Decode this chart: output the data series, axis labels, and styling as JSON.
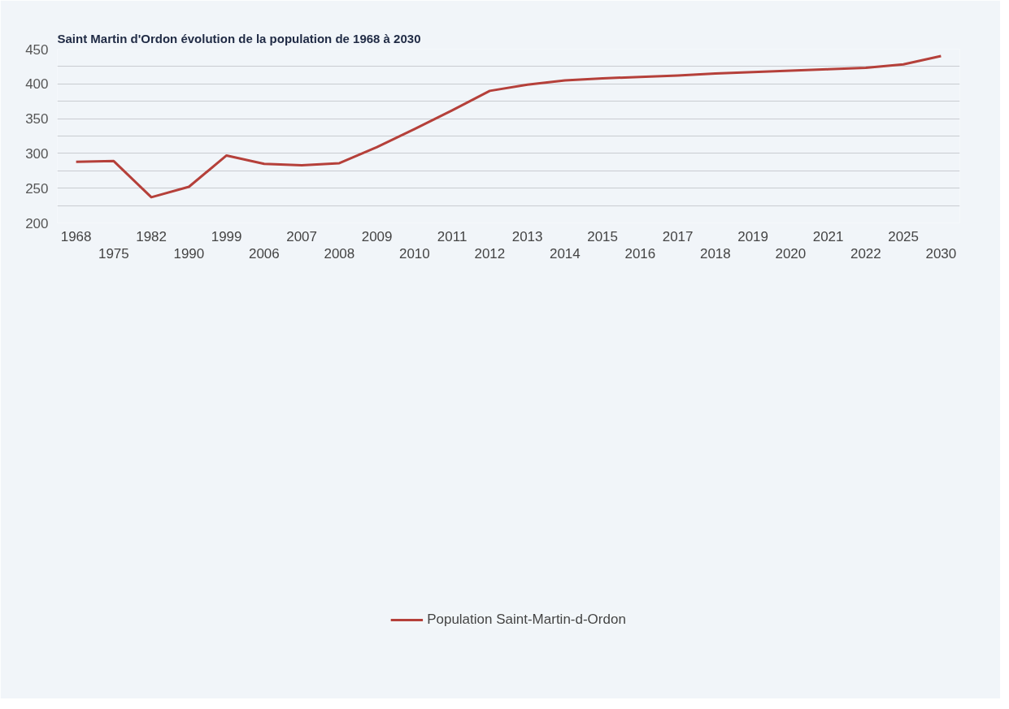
{
  "chart_data": {
    "type": "line",
    "title": "Saint Martin d'Ordon évolution de la population de 1968 à 2030",
    "categories": [
      "1968",
      "1975",
      "1982",
      "1990",
      "1999",
      "2006",
      "2007",
      "2008",
      "2009",
      "2010",
      "2011",
      "2012",
      "2013",
      "2014",
      "2015",
      "2016",
      "2017",
      "2018",
      "2019",
      "2020",
      "2021",
      "2022",
      "2025",
      "2030"
    ],
    "series": [
      {
        "name": "Population Saint-Martin-d-Ordon",
        "color": "#b5403a",
        "values": [
          288,
          289,
          237,
          252,
          297,
          285,
          283,
          286,
          309,
          335,
          362,
          390,
          399,
          405,
          408,
          410,
          412,
          415,
          417,
          419,
          421,
          423,
          428,
          440
        ]
      }
    ],
    "ylim": [
      200,
      450
    ],
    "yticks": [
      200,
      {
        "value": 225,
        "label": null
      },
      250,
      {
        "value": 275,
        "label": null
      },
      300,
      {
        "value": 325,
        "label": null
      },
      350,
      {
        "value": 375,
        "label": null
      },
      400,
      {
        "value": 425,
        "label": null
      },
      450
    ],
    "grid": "y",
    "legend": "bottom",
    "marker": "none",
    "line_style": "solid"
  }
}
